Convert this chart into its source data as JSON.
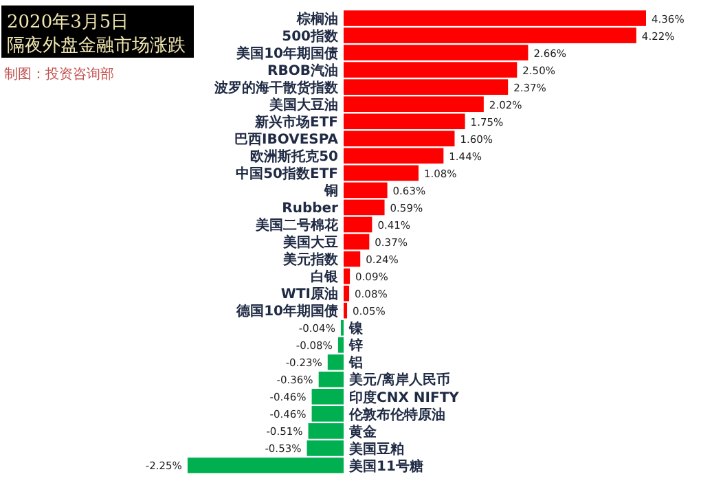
{
  "chart_data": {
    "type": "bar",
    "orientation": "horizontal",
    "title": "2020年3月5日",
    "subtitle": "隔夜外盘金融市场涨跌",
    "annotations": [
      "制图：投资咨询部"
    ],
    "categories": [
      "棕榈油",
      "500指数",
      "美国10年期国债",
      "RBOB汽油",
      "波罗的海干散货指数",
      "美国大豆油",
      "新兴市场ETF",
      "巴西IBOVESPA",
      "欧洲斯托克50",
      "中国50指数ETF",
      "铜",
      "Rubber",
      "美国二号棉花",
      "美国大豆",
      "美元指数",
      "白银",
      "WTI原油",
      "德国10年期国债",
      "镍",
      "锌",
      "铝",
      "美元/离岸人民币",
      "印度CNX NIFTY",
      "伦敦布伦特原油",
      "黄金",
      "美国豆粕",
      "美国11号糖"
    ],
    "values": [
      4.36,
      4.22,
      2.66,
      2.5,
      2.37,
      2.02,
      1.75,
      1.6,
      1.44,
      1.08,
      0.63,
      0.59,
      0.41,
      0.37,
      0.24,
      0.09,
      0.08,
      0.05,
      -0.04,
      -0.08,
      -0.23,
      -0.36,
      -0.46,
      -0.46,
      -0.51,
      -0.53,
      -2.25
    ],
    "value_labels": [
      "4.36%",
      "4.22%",
      "2.66%",
      "2.50%",
      "2.37%",
      "2.02%",
      "1.75%",
      "1.60%",
      "1.44%",
      "1.08%",
      "0.63%",
      "0.59%",
      "0.41%",
      "0.37%",
      "0.24%",
      "0.09%",
      "0.08%",
      "0.05%",
      "-0.04%",
      "-0.08%",
      "-0.23%",
      "-0.36%",
      "-0.46%",
      "-0.46%",
      "-0.51%",
      "-0.53%",
      "-2.25%"
    ],
    "colors": [
      "#ff0000",
      "#ff0000",
      "#ff0000",
      "#ff0000",
      "#ff0000",
      "#ff0000",
      "#ff0000",
      "#ff0000",
      "#ff0000",
      "#ff0000",
      "#ff0000",
      "#ff0000",
      "#ff0000",
      "#ff0000",
      "#ff0000",
      "#ff0000",
      "#ff0000",
      "#ff0000",
      "#00b050",
      "#00b050",
      "#00b050",
      "#00b050",
      "#00b050",
      "#00b050",
      "#00b050",
      "#00b050",
      "#00b050"
    ]
  }
}
